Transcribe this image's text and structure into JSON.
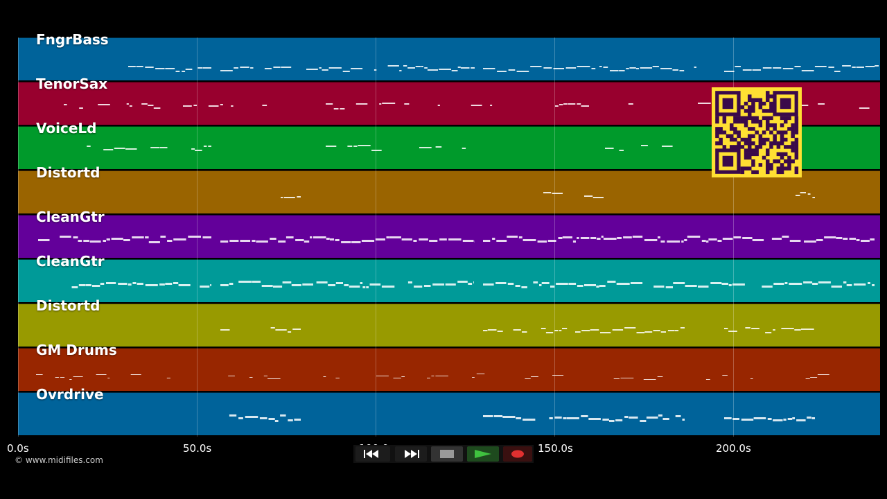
{
  "tracks": [
    {
      "name": "FngrBass",
      "color": "#00639a"
    },
    {
      "name": "TenorSax",
      "color": "#98002e"
    },
    {
      "name": "VoiceLd",
      "color": "#009a2b"
    },
    {
      "name": "Distortd",
      "color": "#9a6400"
    },
    {
      "name": "CleanGtr",
      "color": "#63009a"
    },
    {
      "name": "CleanGtr",
      "color": "#009a98"
    },
    {
      "name": "Distortd",
      "color": "#989a00"
    },
    {
      "name": "GM Drums",
      "color": "#982600"
    },
    {
      "name": "Ovrdrive",
      "color": "#00639a"
    }
  ],
  "timeline": {
    "ticks": [
      "0.0s",
      "50.0s",
      "100.0s",
      "150.0s",
      "200.0s"
    ]
  },
  "copyright": "© www.midifiles.com",
  "controls": {
    "rewind_icon": "rewind-icon",
    "fastforward_icon": "fast-forward-icon",
    "stop_icon": "stop-icon",
    "play_icon": "play-icon",
    "record_icon": "record-icon"
  },
  "qr_icon": "qr-code-icon"
}
